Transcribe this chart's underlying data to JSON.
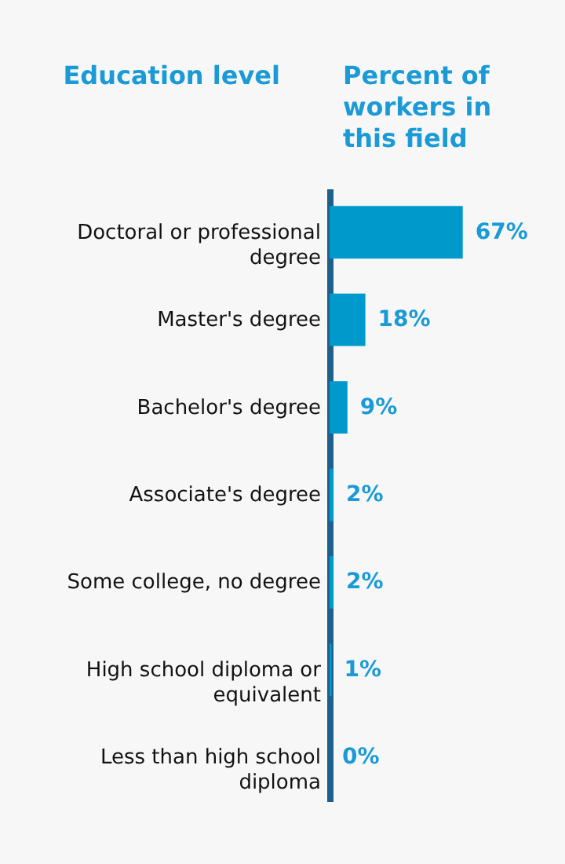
{
  "chart_data": {
    "type": "bar",
    "orientation": "horizontal",
    "ylabel": "Education level",
    "xlabel": "Percent of workers in this field",
    "categories": [
      "Doctoral or professional degree",
      "Master's degree",
      "Bachelor's degree",
      "Associate's degree",
      "Some college, no degree",
      "High school diploma or equivalent",
      "Less than high school diploma"
    ],
    "values": [
      67,
      18,
      9,
      2,
      2,
      1,
      0
    ],
    "value_labels": [
      "67%",
      "18%",
      "9%",
      "2%",
      "2%",
      "1%",
      "0%"
    ],
    "color": "#0099cc"
  }
}
